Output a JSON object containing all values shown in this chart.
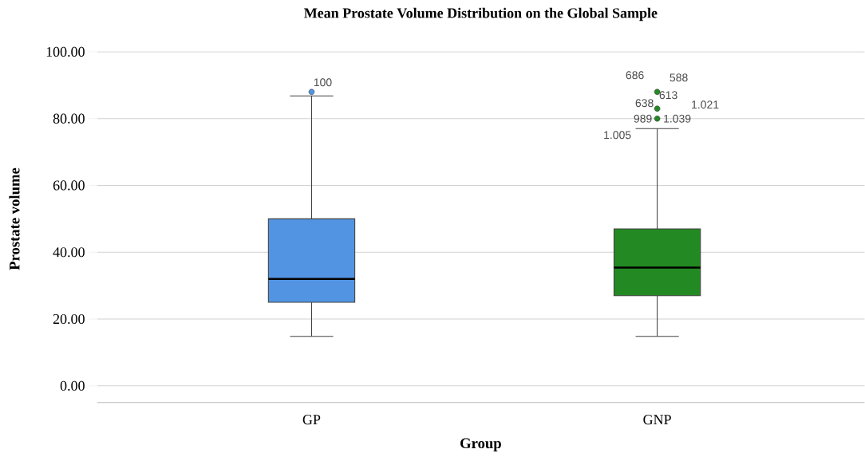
{
  "chart_data": {
    "type": "box",
    "title": "Mean Prostate Volume Distribution on the Global Sample",
    "xlabel": "Group",
    "ylabel": "Prostate volume",
    "categories": [
      "GP",
      "GNP"
    ],
    "colors": [
      "#5294e2",
      "#238a23"
    ],
    "boxes": [
      {
        "low": 14.8,
        "q1": 25,
        "median": 32,
        "q3": 50,
        "high": 86.8,
        "outliers": [
          88
        ]
      },
      {
        "low": 14.8,
        "q1": 27,
        "median": 35.4,
        "q3": 47,
        "high": 77,
        "outliers": [
          80,
          83,
          88
        ]
      }
    ],
    "ylim": [
      -5,
      100
    ],
    "yticks": [
      {
        "value": 0,
        "label": "0.00"
      },
      {
        "value": 20,
        "label": "20.00"
      },
      {
        "value": 40,
        "label": "40.00"
      },
      {
        "value": 60,
        "label": "60.00"
      },
      {
        "value": 80,
        "label": "80.00"
      },
      {
        "value": 100,
        "label": "100.00"
      }
    ],
    "grid": "y",
    "marker": "circle",
    "annotations": [
      "100",
      "686",
      "588",
      "613",
      "638",
      "1.021",
      "989",
      "1.039",
      "1.005"
    ]
  }
}
